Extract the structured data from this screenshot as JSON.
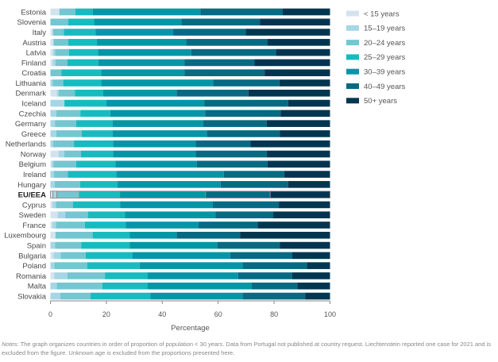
{
  "chart_data": {
    "type": "bar",
    "orientation": "horizontal",
    "stacked": true,
    "title": "",
    "xlabel": "Percentage",
    "ylabel": "",
    "xlim": [
      0,
      100
    ],
    "xticks": [
      "0",
      "20",
      "40",
      "60",
      "80",
      "100"
    ],
    "highlight_category": "EU/EEA",
    "legend_position": "top-right",
    "categories": [
      "Estonia",
      "Slovenia",
      "Italy",
      "Austria",
      "Latvia",
      "Finland",
      "Croatia",
      "Lithuania",
      "Denmark",
      "Iceland",
      "Czechia",
      "Germany",
      "Greece",
      "Netherlands",
      "Norway",
      "Belgium",
      "Ireland",
      "Hungary",
      "EU/EEA",
      "Cyprus",
      "Sweden",
      "France",
      "Luxembourg",
      "Spain",
      "Bulgaria",
      "Poland",
      "Romania",
      "Malta",
      "Slovakia"
    ],
    "series": [
      {
        "name": "< 15 years",
        "color": "#d3e3ee",
        "values": [
          3.2,
          0,
          0.9,
          1.1,
          0.9,
          0.8,
          0,
          0,
          2.3,
          0,
          0,
          0,
          0,
          0,
          2.9,
          0.4,
          0,
          0,
          0.9,
          0.7,
          2.6,
          0.7,
          1.8,
          0,
          1.1,
          0,
          1.4,
          0,
          0
        ]
      },
      {
        "name": "15–19 years",
        "color": "#a6d6e5",
        "values": [
          0,
          0,
          0,
          0,
          0.8,
          1.0,
          0,
          0.8,
          0.7,
          5.0,
          2.1,
          1.6,
          2.1,
          1.0,
          2.0,
          0.7,
          1.2,
          1.5,
          1.4,
          1.3,
          2.7,
          1.3,
          0,
          1.7,
          2.6,
          1.4,
          4.7,
          2.3,
          3.5
        ]
      },
      {
        "name": "20–24 years",
        "color": "#74c6d0",
        "values": [
          5.7,
          6.4,
          3.9,
          5.3,
          4.9,
          4.3,
          3.9,
          3.8,
          5.8,
          0,
          8.6,
          7.6,
          9.1,
          7.4,
          6.0,
          8.1,
          5.0,
          9.1,
          8.1,
          6.1,
          8.1,
          10.3,
          13.3,
          9.3,
          8.9,
          11.8,
          13.4,
          16.3,
          10.8
        ]
      },
      {
        "name": "25–29 years",
        "color": "#17bbbf",
        "values": [
          6.2,
          9.2,
          11.3,
          10.2,
          10.4,
          11.0,
          14.3,
          13.6,
          10.1,
          15.0,
          10.7,
          13.0,
          11.1,
          14.0,
          11.5,
          14.0,
          17.4,
          13.4,
          14.4,
          16.9,
          13.3,
          14.6,
          13.3,
          17.4,
          16.7,
          18.7,
          15.3,
          16.2,
          21.4
        ]
      },
      {
        "name": "30–39 years",
        "color": "#0496a7",
        "values": [
          38.5,
          31.2,
          27.8,
          31.9,
          33.4,
          30.8,
          29.8,
          40.0,
          26.3,
          35.0,
          33.9,
          32.5,
          33.7,
          29.6,
          29.6,
          29.2,
          38.4,
          36.9,
          30.7,
          33.1,
          32.4,
          26.1,
          16.8,
          31.3,
          35.0,
          36.8,
          32.3,
          37.2,
          33.0
        ]
      },
      {
        "name": "40–49 years",
        "color": "#066a83",
        "values": [
          29.5,
          28.1,
          26.0,
          29.2,
          30.3,
          25.1,
          28.6,
          23.7,
          25.6,
          30.0,
          27.0,
          22.7,
          26.0,
          19.6,
          25.4,
          25.2,
          21.6,
          24.1,
          23.1,
          23.6,
          20.6,
          21.1,
          22.6,
          22.3,
          22.2,
          23.0,
          19.4,
          16.3,
          22.4
        ]
      },
      {
        "name": "50+ years",
        "color": "#023650",
        "values": [
          16.9,
          25.1,
          30.1,
          22.3,
          19.3,
          27.0,
          23.4,
          18.1,
          29.2,
          15.0,
          17.7,
          22.6,
          18.0,
          28.4,
          22.6,
          22.4,
          16.4,
          15.0,
          21.4,
          18.3,
          20.3,
          25.9,
          32.2,
          18.0,
          13.5,
          8.3,
          13.5,
          11.7,
          8.9
        ]
      }
    ]
  },
  "notes": {
    "label": "Notes:",
    "text": " The graph organizes countries in order of proportion of population < 30 years. Data from Portugal not published at country request. Liechtenstein reported one case for 2021 and is excluded from the figure. Unknown age is excluded from the proportions presented here."
  }
}
